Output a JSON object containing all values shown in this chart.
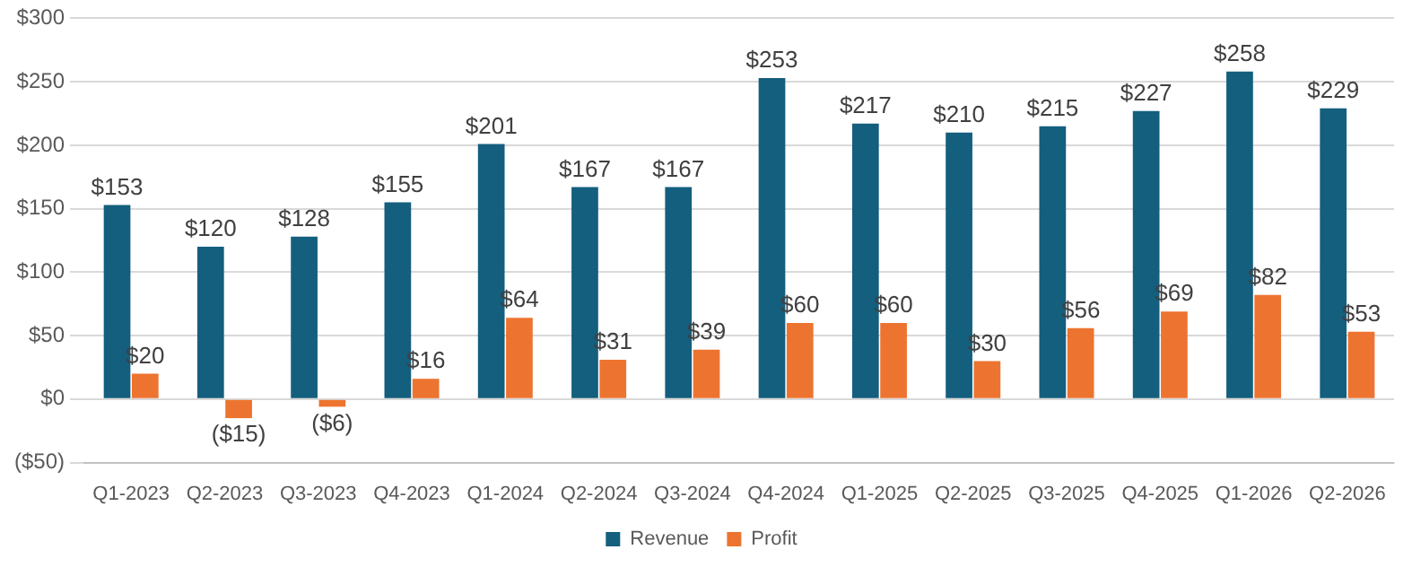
{
  "chart_data": {
    "type": "bar",
    "categories": [
      "Q1-2023",
      "Q2-2023",
      "Q3-2023",
      "Q4-2023",
      "Q1-2024",
      "Q2-2024",
      "Q3-2024",
      "Q4-2024",
      "Q1-2025",
      "Q2-2025",
      "Q3-2025",
      "Q4-2025",
      "Q1-2026",
      "Q2-2026"
    ],
    "series": [
      {
        "name": "Revenue",
        "color": "#145e7e",
        "values": [
          153,
          120,
          128,
          155,
          201,
          167,
          167,
          253,
          217,
          210,
          215,
          227,
          258,
          229
        ],
        "value_labels": [
          "$153",
          "$120",
          "$128",
          "$155",
          "$201",
          "$167",
          "$167",
          "$253",
          "$217",
          "$210",
          "$215",
          "$227",
          "$258",
          "$229"
        ]
      },
      {
        "name": "Profit",
        "color": "#ed7430",
        "values": [
          20,
          -15,
          -6,
          16,
          64,
          31,
          39,
          60,
          60,
          30,
          56,
          69,
          82,
          53
        ],
        "value_labels": [
          "$20",
          "($15)",
          "($6)",
          "$16",
          "$64",
          "$31",
          "$39",
          "$60",
          "$60",
          "$30",
          "$56",
          "$69",
          "$82",
          "$53"
        ]
      }
    ],
    "ylim": [
      -50,
      300
    ],
    "yticks": [
      {
        "value": -50,
        "label": "($50)"
      },
      {
        "value": 0,
        "label": "$0"
      },
      {
        "value": 50,
        "label": "$50"
      },
      {
        "value": 100,
        "label": "$100"
      },
      {
        "value": 150,
        "label": "$150"
      },
      {
        "value": 200,
        "label": "$200"
      },
      {
        "value": 250,
        "label": "$250"
      },
      {
        "value": 300,
        "label": "$300"
      }
    ],
    "grid": "y",
    "legend": "bottom"
  }
}
